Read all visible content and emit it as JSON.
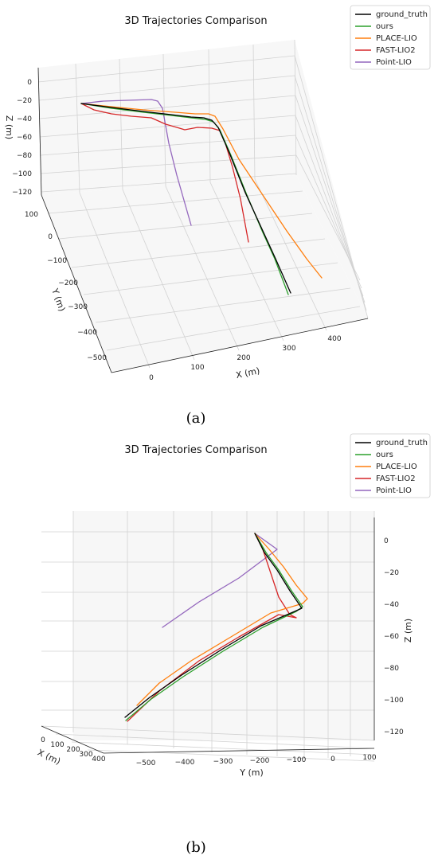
{
  "caption_a": "(a)",
  "caption_b": "(b)",
  "colors": {
    "ground_truth": "#000000",
    "ours": "#2ca02c",
    "PLACE-LIO": "#ff7f0e",
    "FAST-LIO2": "#d62728",
    "Point-LIO": "#9467bd"
  },
  "chart_data": [
    {
      "type": "line",
      "projection": "3d",
      "title": "3D Trajectories Comparison",
      "xlabel": "X (m)",
      "ylabel": "Y (m)",
      "zlabel": "Z (m)",
      "x_ticks": [
        "0",
        "100",
        "200",
        "300",
        "400"
      ],
      "y_ticks": [
        "100",
        "0",
        "−100",
        "−200",
        "−300",
        "−400",
        "−500"
      ],
      "z_ticks": [
        "0",
        "−20",
        "−40",
        "−60",
        "−80",
        "−100",
        "−120"
      ],
      "legend_position": "top-right",
      "series": [
        {
          "name": "ground_truth",
          "points": [
            [
              -20,
              -5,
              -20
            ],
            [
              40,
              -5,
              -35
            ],
            [
              110,
              -8,
              -40
            ],
            [
              150,
              -20,
              -45
            ],
            [
              220,
              -150,
              -90
            ],
            [
              300,
              -330,
              -110
            ]
          ]
        },
        {
          "name": "ours",
          "points": [
            [
              -20,
              -5,
              -20
            ],
            [
              40,
              -5,
              -35
            ],
            [
              110,
              -8,
              -42
            ],
            [
              150,
              -20,
              -46
            ],
            [
              222,
              -152,
              -91
            ],
            [
              304,
              -332,
              -112
            ]
          ]
        },
        {
          "name": "PLACE-LIO",
          "points": [
            [
              -20,
              -5,
              -20
            ],
            [
              40,
              -5,
              -33
            ],
            [
              120,
              -8,
              -30
            ],
            [
              150,
              -20,
              -35
            ],
            [
              260,
              -160,
              -75
            ],
            [
              380,
              -300,
              -90
            ]
          ]
        },
        {
          "name": "FAST-LIO2",
          "points": [
            [
              -20,
              -5,
              -20
            ],
            [
              40,
              -8,
              -35
            ],
            [
              100,
              -10,
              -45
            ],
            [
              140,
              -20,
              -40
            ],
            [
              180,
              -110,
              -70
            ],
            [
              230,
              -200,
              -85
            ]
          ]
        },
        {
          "name": "Point-LIO",
          "points": [
            [
              -20,
              -5,
              -20
            ],
            [
              40,
              -5,
              -20
            ],
            [
              80,
              -5,
              -20
            ],
            [
              90,
              -20,
              -35
            ],
            [
              100,
              -100,
              -70
            ],
            [
              110,
              -170,
              -95
            ]
          ]
        }
      ]
    },
    {
      "type": "line",
      "projection": "3d",
      "title": "3D Trajectories Comparison",
      "xlabel": "X (m)",
      "ylabel": "Y (m)",
      "zlabel": "Z (m)",
      "x_ticks": [
        "0",
        "100",
        "200",
        "300",
        "400"
      ],
      "y_ticks": [
        "−500",
        "−400",
        "−300",
        "−200",
        "−100",
        "0",
        "100"
      ],
      "z_ticks": [
        "0",
        "−20",
        "−40",
        "−60",
        "−80",
        "−100",
        "−120"
      ],
      "legend_position": "top-right",
      "series": [
        {
          "name": "ground_truth",
          "points": [
            [
              -20,
              -5,
              -20
            ],
            [
              40,
              -5,
              -35
            ],
            [
              110,
              -8,
              -40
            ],
            [
              150,
              -20,
              -45
            ],
            [
              220,
              -150,
              -90
            ],
            [
              300,
              -330,
              -110
            ]
          ]
        },
        {
          "name": "ours",
          "points": [
            [
              -20,
              -5,
              -20
            ],
            [
              40,
              -5,
              -35
            ],
            [
              110,
              -8,
              -42
            ],
            [
              150,
              -20,
              -46
            ],
            [
              222,
              -152,
              -91
            ],
            [
              304,
              -332,
              -112
            ]
          ]
        },
        {
          "name": "PLACE-LIO",
          "points": [
            [
              -20,
              -5,
              -20
            ],
            [
              40,
              -5,
              -33
            ],
            [
              120,
              -8,
              -30
            ],
            [
              150,
              -20,
              -35
            ],
            [
              260,
              -160,
              -75
            ],
            [
              380,
              -300,
              -90
            ]
          ]
        },
        {
          "name": "FAST-LIO2",
          "points": [
            [
              -20,
              -5,
              -20
            ],
            [
              40,
              -8,
              -35
            ],
            [
              100,
              -10,
              -45
            ],
            [
              140,
              -20,
              -40
            ],
            [
              180,
              -110,
              -70
            ],
            [
              230,
              -200,
              -85
            ]
          ]
        },
        {
          "name": "Point-LIO",
          "points": [
            [
              -20,
              -5,
              -20
            ],
            [
              40,
              -5,
              -20
            ],
            [
              80,
              -5,
              -20
            ],
            [
              90,
              -20,
              -35
            ],
            [
              100,
              -100,
              -70
            ],
            [
              110,
              -170,
              -95
            ]
          ]
        }
      ]
    }
  ]
}
